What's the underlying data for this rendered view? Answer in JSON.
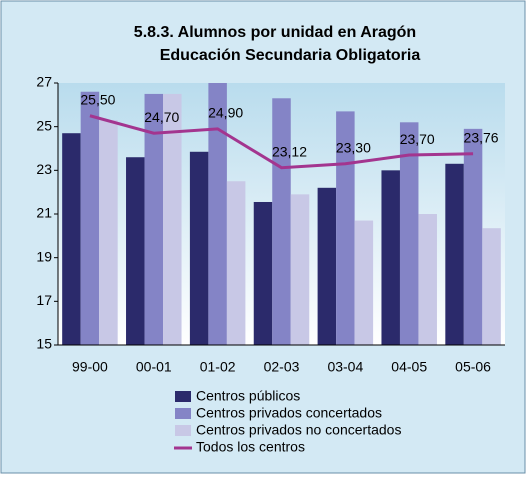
{
  "chart_data": {
    "type": "bar",
    "title": "5.8.3. Alumnos por unidad en Aragón",
    "subtitle": "Educación Secundaria Obligatoria",
    "categories": [
      "99-00",
      "00-01",
      "01-02",
      "02-03",
      "03-04",
      "04-05",
      "05-06"
    ],
    "series": [
      {
        "name": "Centros públicos",
        "color": "#2b2a6b",
        "values": [
          24.7,
          23.6,
          23.85,
          21.55,
          22.2,
          23.0,
          23.3
        ]
      },
      {
        "name": "Centros privados concertados",
        "color": "#8484c6",
        "values": [
          26.6,
          26.5,
          27.0,
          26.3,
          25.7,
          25.2,
          24.9
        ]
      },
      {
        "name": "Centros privados no concertados",
        "color": "#c8c8e6",
        "values": [
          25.3,
          26.5,
          22.5,
          21.9,
          20.7,
          21.0,
          20.35
        ]
      },
      {
        "name": "Todos los centros",
        "color": "#a3358f",
        "type": "line",
        "values": [
          25.5,
          24.7,
          24.9,
          23.12,
          23.3,
          23.7,
          23.76
        ],
        "value_labels": [
          "25,50",
          "24,70",
          "24,90",
          "23,12",
          "23,30",
          "23,70",
          "23,76"
        ]
      }
    ],
    "ylim": [
      15,
      27
    ],
    "yticks": [
      15,
      17,
      19,
      21,
      23,
      25,
      27
    ],
    "grid": false
  }
}
